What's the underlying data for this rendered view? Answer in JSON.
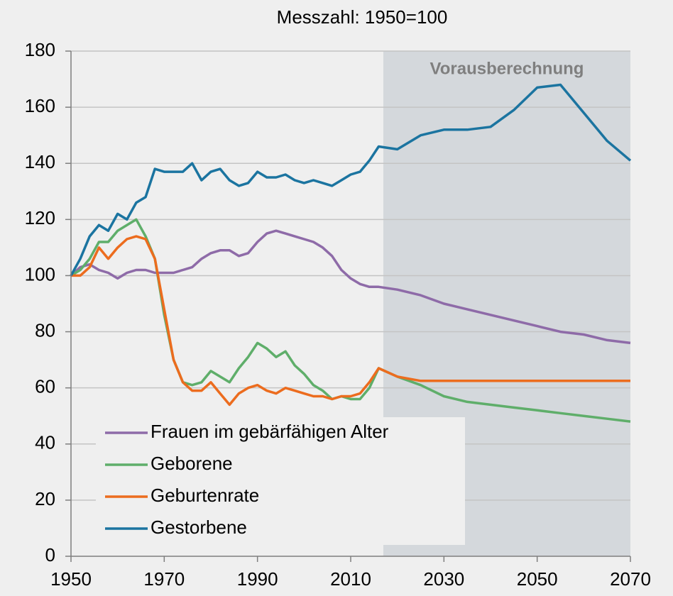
{
  "chart_data": {
    "type": "line",
    "title": "Messzahl: 1950=100",
    "shaded_region": {
      "label": "Vorausberechnung",
      "xlim": [
        2017,
        2070
      ],
      "color": "#d4d8dc"
    },
    "x": [
      1950,
      1952,
      1954,
      1956,
      1958,
      1960,
      1962,
      1964,
      1966,
      1968,
      1970,
      1972,
      1974,
      1976,
      1978,
      1980,
      1982,
      1984,
      1986,
      1988,
      1990,
      1992,
      1994,
      1996,
      1998,
      2000,
      2002,
      2004,
      2006,
      2008,
      2010,
      2012,
      2014,
      2016,
      2020,
      2025,
      2030,
      2035,
      2040,
      2045,
      2050,
      2055,
      2060,
      2065,
      2070
    ],
    "series": [
      {
        "name": "Frauen im gebärfähigen Alter",
        "color": "#8e6ba8",
        "values": [
          100,
          103,
          104,
          102,
          101,
          99,
          101,
          102,
          102,
          101,
          101,
          101,
          102,
          103,
          106,
          108,
          109,
          109,
          107,
          108,
          112,
          115,
          116,
          115,
          114,
          113,
          112,
          110,
          107,
          102,
          99,
          97,
          96,
          96,
          95,
          93,
          90,
          88,
          86,
          84,
          82,
          80,
          79,
          77,
          76
        ]
      },
      {
        "name": "Geborene",
        "color": "#5fae6a",
        "values": [
          100,
          102,
          106,
          112,
          112,
          116,
          118,
          120,
          114,
          106,
          86,
          70,
          62,
          61,
          62,
          66,
          64,
          62,
          67,
          71,
          76,
          74,
          71,
          73,
          68,
          65,
          61,
          59,
          56,
          57,
          56,
          56,
          60,
          67,
          64,
          61,
          57,
          55,
          54,
          53,
          52,
          51,
          50,
          49,
          48
        ]
      },
      {
        "name": "Geburtenrate",
        "color": "#ec6c1e",
        "values": [
          100,
          100,
          103,
          110,
          106,
          110,
          113,
          114,
          113,
          106,
          88,
          70,
          62,
          59,
          59,
          62,
          58,
          54,
          58,
          60,
          61,
          59,
          58,
          60,
          59,
          58,
          57,
          57,
          56,
          57,
          57,
          58,
          62,
          67,
          64,
          62.5,
          62.5,
          62.5,
          62.5,
          62.5,
          62.5,
          62.5,
          62.5,
          62.5,
          62.5
        ]
      },
      {
        "name": "Gestorbene",
        "color": "#1b74a0",
        "values": [
          100,
          106,
          114,
          118,
          116,
          122,
          120,
          126,
          128,
          138,
          137,
          137,
          137,
          140,
          134,
          137,
          138,
          134,
          132,
          133,
          137,
          135,
          135,
          136,
          134,
          133,
          134,
          133,
          132,
          134,
          136,
          137,
          141,
          146,
          145,
          150,
          152,
          152,
          153,
          159,
          167,
          168,
          158,
          148,
          141
        ]
      }
    ],
    "xlim": [
      1950,
      2070
    ],
    "xticks": [
      1950,
      1970,
      1990,
      2010,
      2030,
      2050,
      2070
    ],
    "ylim": [
      0,
      180
    ],
    "yticks": [
      0,
      20,
      40,
      60,
      80,
      100,
      120,
      140,
      160,
      180
    ],
    "grid": true,
    "legend": "lower left"
  }
}
